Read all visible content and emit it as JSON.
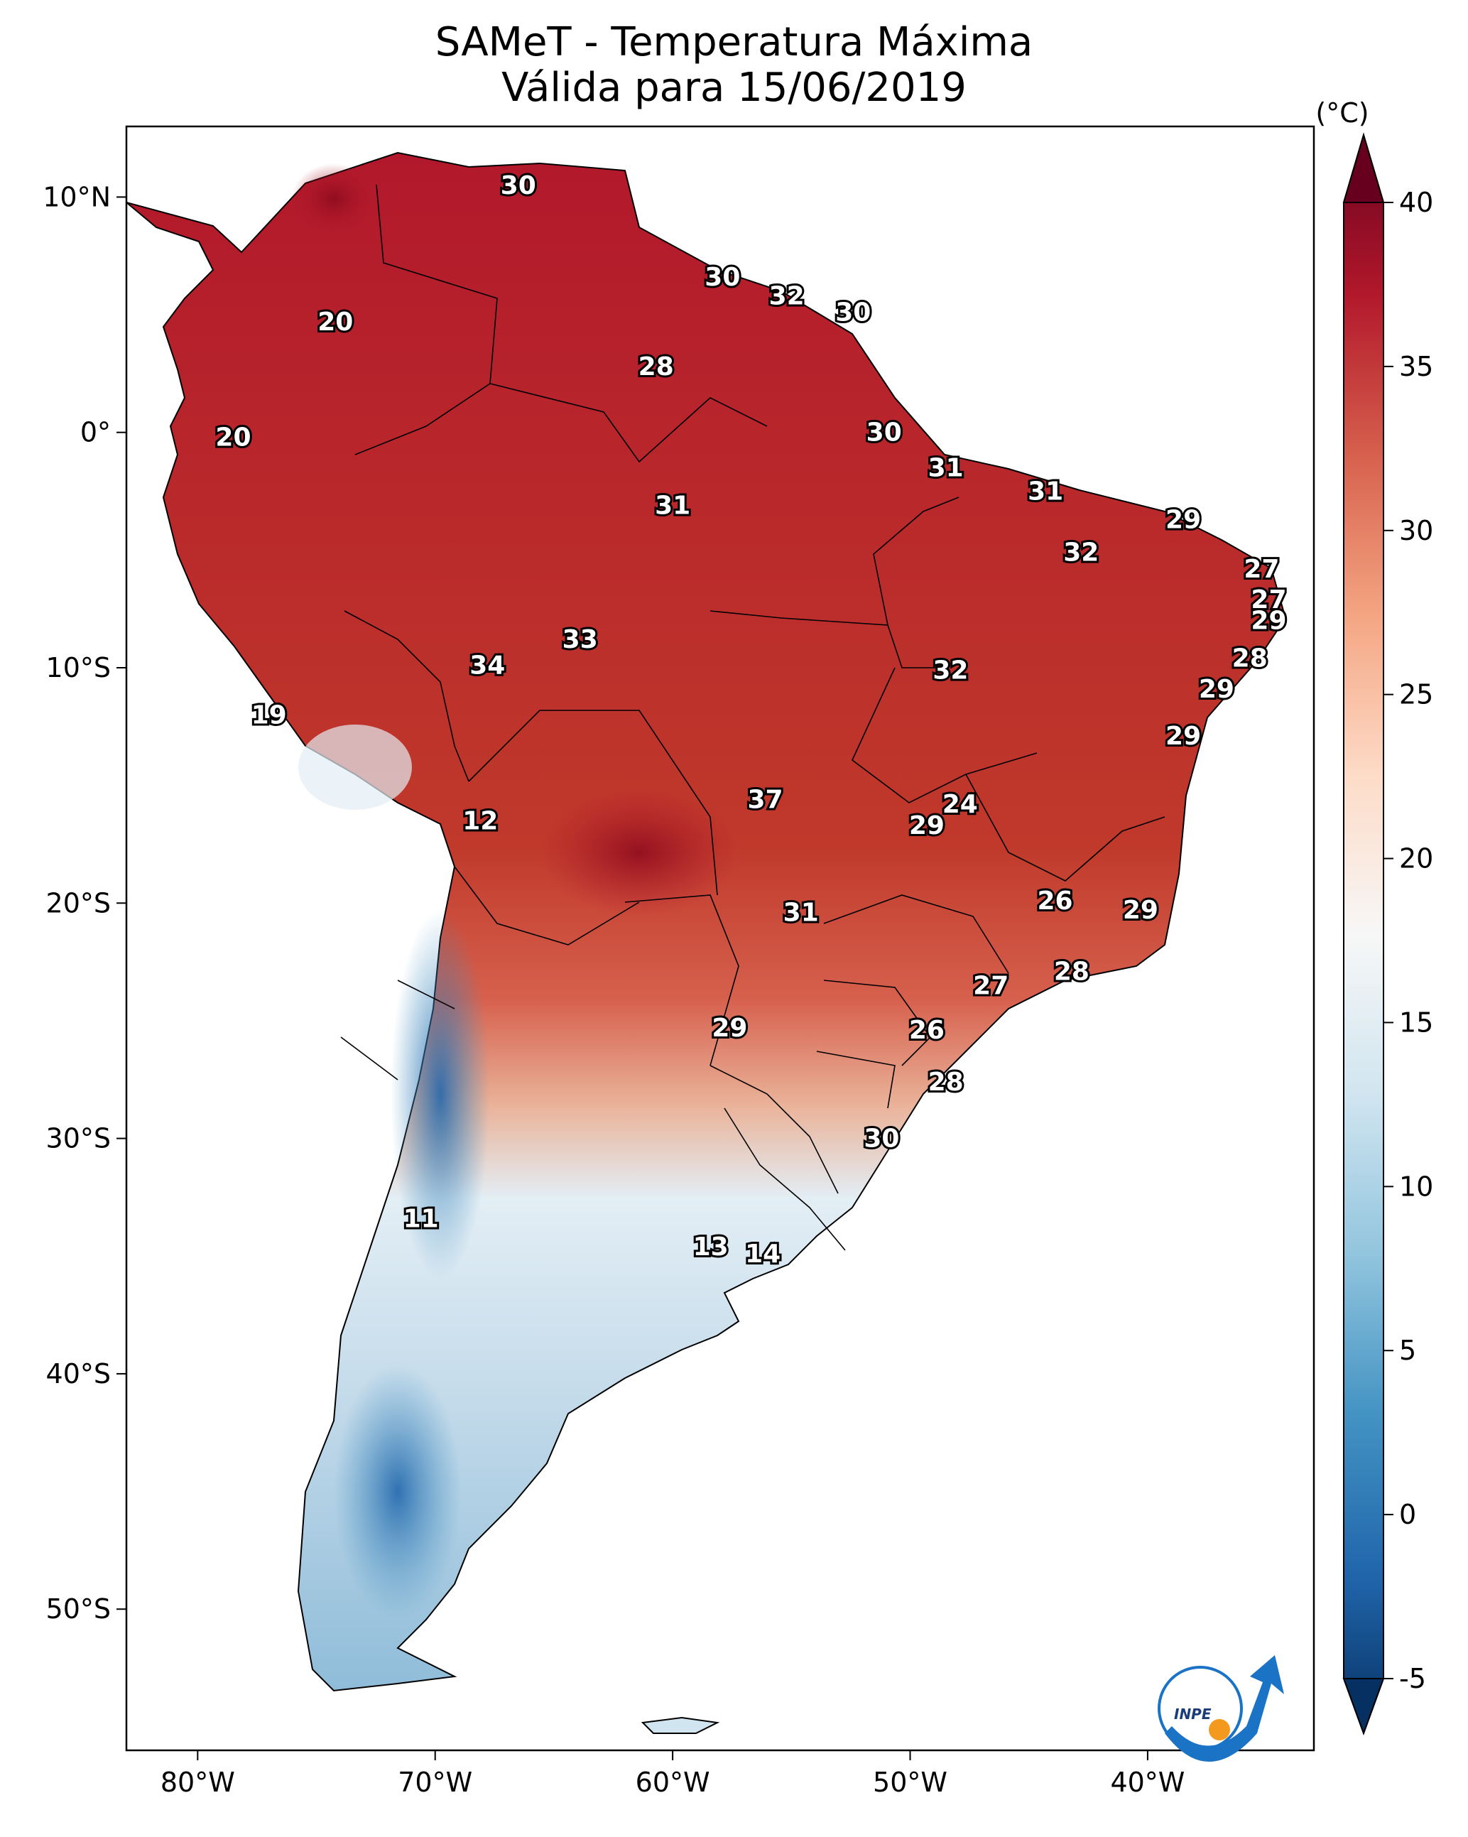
{
  "title": {
    "line1": "SAMeT - Temperatura Máxima",
    "line2": "Válida para 15/06/2019"
  },
  "map": {
    "lon_range": [
      -83,
      -33
    ],
    "lat_range": [
      -56,
      13
    ],
    "lon_ticks": [
      {
        "value": -80,
        "label": "80°W"
      },
      {
        "value": -70,
        "label": "70°W"
      },
      {
        "value": -60,
        "label": "60°W"
      },
      {
        "value": -50,
        "label": "50°W"
      },
      {
        "value": -40,
        "label": "40°W"
      }
    ],
    "lat_ticks": [
      {
        "value": 10,
        "label": "10°N"
      },
      {
        "value": 0,
        "label": "0°"
      },
      {
        "value": -10,
        "label": "10°S"
      },
      {
        "value": -20,
        "label": "20°S"
      },
      {
        "value": -30,
        "label": "30°S"
      },
      {
        "value": -40,
        "label": "40°S"
      },
      {
        "value": -50,
        "label": "50°S"
      }
    ],
    "city_values": [
      {
        "lon": -66.5,
        "lat": 10.5,
        "label": "30"
      },
      {
        "lon": -57.9,
        "lat": 6.6,
        "label": "30"
      },
      {
        "lon": -55.2,
        "lat": 5.8,
        "label": "32"
      },
      {
        "lon": -52.4,
        "lat": 5.1,
        "label": "30"
      },
      {
        "lon": -74.2,
        "lat": 4.7,
        "label": "20"
      },
      {
        "lon": -60.7,
        "lat": 2.8,
        "label": "28"
      },
      {
        "lon": -78.5,
        "lat": -0.2,
        "label": "20"
      },
      {
        "lon": -51.1,
        "lat": 0.0,
        "label": "30"
      },
      {
        "lon": -48.5,
        "lat": -1.5,
        "label": "31"
      },
      {
        "lon": -60.0,
        "lat": -3.1,
        "label": "31"
      },
      {
        "lon": -44.3,
        "lat": -2.5,
        "label": "31"
      },
      {
        "lon": -38.5,
        "lat": -3.7,
        "label": "29"
      },
      {
        "lon": -42.8,
        "lat": -5.1,
        "label": "32"
      },
      {
        "lon": -35.2,
        "lat": -5.8,
        "label": "27"
      },
      {
        "lon": -34.9,
        "lat": -7.1,
        "label": "27"
      },
      {
        "lon": -34.9,
        "lat": -8.0,
        "label": "29"
      },
      {
        "lon": -63.9,
        "lat": -8.8,
        "label": "33"
      },
      {
        "lon": -67.8,
        "lat": -9.9,
        "label": "34"
      },
      {
        "lon": -48.3,
        "lat": -10.1,
        "label": "32"
      },
      {
        "lon": -35.7,
        "lat": -9.6,
        "label": "28"
      },
      {
        "lon": -37.1,
        "lat": -10.9,
        "label": "29"
      },
      {
        "lon": -77.0,
        "lat": -12.0,
        "label": "19"
      },
      {
        "lon": -38.5,
        "lat": -12.9,
        "label": "29"
      },
      {
        "lon": -56.1,
        "lat": -15.6,
        "label": "37"
      },
      {
        "lon": -47.9,
        "lat": -15.8,
        "label": "24"
      },
      {
        "lon": -49.3,
        "lat": -16.7,
        "label": "29"
      },
      {
        "lon": -68.1,
        "lat": -16.5,
        "label": "12"
      },
      {
        "lon": -43.9,
        "lat": -19.9,
        "label": "26"
      },
      {
        "lon": -40.3,
        "lat": -20.3,
        "label": "29"
      },
      {
        "lon": -54.6,
        "lat": -20.4,
        "label": "31"
      },
      {
        "lon": -43.2,
        "lat": -22.9,
        "label": "28"
      },
      {
        "lon": -46.6,
        "lat": -23.5,
        "label": "27"
      },
      {
        "lon": -57.6,
        "lat": -25.3,
        "label": "29"
      },
      {
        "lon": -49.3,
        "lat": -25.4,
        "label": "26"
      },
      {
        "lon": -48.5,
        "lat": -27.6,
        "label": "28"
      },
      {
        "lon": -51.2,
        "lat": -30.0,
        "label": "30"
      },
      {
        "lon": -70.6,
        "lat": -33.4,
        "label": "11"
      },
      {
        "lon": -58.4,
        "lat": -34.6,
        "label": "13"
      },
      {
        "lon": -56.2,
        "lat": -34.9,
        "label": "14"
      }
    ]
  },
  "colorbar": {
    "unit": "(°C)",
    "range": [
      -5,
      40
    ],
    "ticks": [
      {
        "value": 40,
        "label": "40"
      },
      {
        "value": 35,
        "label": "35"
      },
      {
        "value": 30,
        "label": "30"
      },
      {
        "value": 25,
        "label": "25"
      },
      {
        "value": 20,
        "label": "20"
      },
      {
        "value": 15,
        "label": "15"
      },
      {
        "value": 10,
        "label": "10"
      },
      {
        "value": 5,
        "label": "5"
      },
      {
        "value": 0,
        "label": "0"
      },
      {
        "value": -5,
        "label": "-5"
      }
    ],
    "colors": [
      "#053061",
      "#2166ac",
      "#4393c3",
      "#92c5de",
      "#d1e5f0",
      "#f7f7f7",
      "#fddbc7",
      "#f4a582",
      "#d6604d",
      "#b2182b",
      "#67001f"
    ]
  },
  "logo": {
    "text": "INPE",
    "colors": {
      "blue": "#1a73c4",
      "orange": "#f39a1e"
    }
  }
}
